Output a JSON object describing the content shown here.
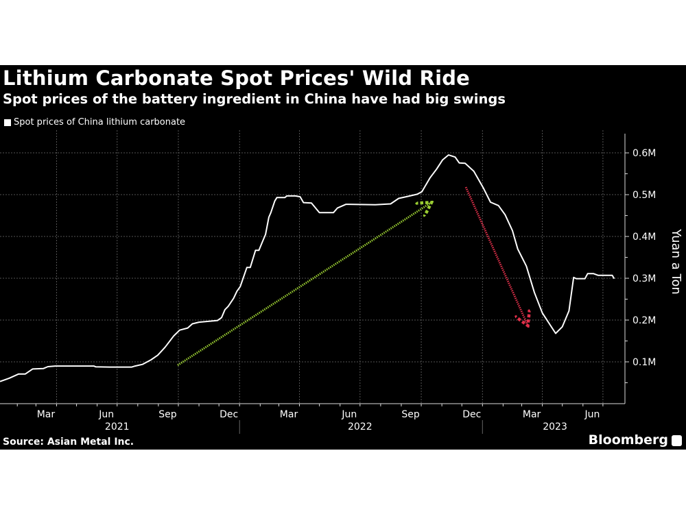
{
  "chart_data": {
    "type": "line",
    "title": "Lithium Carbonate Spot Prices' Wild Ride",
    "subtitle": "Spot prices of the battery ingredient in China have had big swings",
    "ylabel": "Yuan a Ton",
    "xlabel": "",
    "ylim": [
      0,
      646000
    ],
    "xlim": [
      "2021-01-06",
      "2023-07-31"
    ],
    "y_ticks": [
      {
        "value": 100000,
        "label": "0.1M"
      },
      {
        "value": 200000,
        "label": "0.2M"
      },
      {
        "value": 300000,
        "label": "0.3M"
      },
      {
        "value": 400000,
        "label": "0.4M"
      },
      {
        "value": 500000,
        "label": "0.5M"
      },
      {
        "value": 600000,
        "label": "0.6M"
      }
    ],
    "x_month_labels": [
      {
        "date": "2021-03-16",
        "label": "Mar"
      },
      {
        "date": "2021-06-15",
        "label": "Jun"
      },
      {
        "date": "2021-09-15",
        "label": "Sep"
      },
      {
        "date": "2021-12-16",
        "label": "Dec"
      },
      {
        "date": "2022-03-16",
        "label": "Mar"
      },
      {
        "date": "2022-06-15",
        "label": "Jun"
      },
      {
        "date": "2022-09-15",
        "label": "Sep"
      },
      {
        "date": "2022-12-16",
        "label": "Dec"
      },
      {
        "date": "2023-03-16",
        "label": "Mar"
      },
      {
        "date": "2023-06-15",
        "label": "Jun"
      }
    ],
    "x_year_labels": [
      {
        "date": "2021-07-01",
        "label": "2021"
      },
      {
        "date": "2022-07-01",
        "label": "2022"
      },
      {
        "date": "2023-04-20",
        "label": "2023"
      }
    ],
    "grid": true,
    "legend_position": "top-left",
    "series": [
      {
        "name": "Spot prices of China lithium carbonate",
        "color": "#ffffff",
        "points": [
          [
            "2021-01-06",
            53000
          ],
          [
            "2021-01-20",
            61000
          ],
          [
            "2021-02-03",
            71000
          ],
          [
            "2021-02-13",
            71000
          ],
          [
            "2021-02-24",
            83000
          ],
          [
            "2021-03-12",
            84000
          ],
          [
            "2021-03-19",
            88500
          ],
          [
            "2021-03-30",
            90000
          ],
          [
            "2021-05-27",
            90000
          ],
          [
            "2021-05-30",
            88000
          ],
          [
            "2021-06-20",
            87500
          ],
          [
            "2021-07-23",
            87500
          ],
          [
            "2021-07-28",
            90000
          ],
          [
            "2021-08-08",
            94000
          ],
          [
            "2021-08-21",
            105000
          ],
          [
            "2021-08-31",
            116000
          ],
          [
            "2021-09-11",
            135000
          ],
          [
            "2021-09-24",
            162000
          ],
          [
            "2021-10-03",
            176000
          ],
          [
            "2021-10-15",
            181000
          ],
          [
            "2021-10-22",
            191000
          ],
          [
            "2021-11-01",
            195000
          ],
          [
            "2021-11-22",
            198000
          ],
          [
            "2021-11-29",
            199000
          ],
          [
            "2021-12-05",
            206000
          ],
          [
            "2021-12-10",
            225000
          ],
          [
            "2021-12-15",
            233000
          ],
          [
            "2021-12-23",
            252000
          ],
          [
            "2021-12-28",
            269000
          ],
          [
            "2022-01-02",
            280000
          ],
          [
            "2022-01-12",
            326000
          ],
          [
            "2022-01-17",
            326000
          ],
          [
            "2022-01-25",
            367000
          ],
          [
            "2022-01-30",
            367000
          ],
          [
            "2022-02-04",
            386000
          ],
          [
            "2022-02-09",
            405000
          ],
          [
            "2022-02-14",
            446000
          ],
          [
            "2022-02-17",
            457000
          ],
          [
            "2022-02-23",
            485000
          ],
          [
            "2022-02-26",
            493000
          ],
          [
            "2022-03-10",
            493000
          ],
          [
            "2022-03-13",
            497000
          ],
          [
            "2022-03-26",
            497000
          ],
          [
            "2022-04-02",
            495000
          ],
          [
            "2022-04-07",
            481000
          ],
          [
            "2022-04-19",
            480000
          ],
          [
            "2022-05-01",
            457000
          ],
          [
            "2022-05-22",
            457000
          ],
          [
            "2022-05-28",
            468000
          ],
          [
            "2022-06-10",
            477000
          ],
          [
            "2022-07-24",
            476000
          ],
          [
            "2022-08-16",
            478000
          ],
          [
            "2022-08-28",
            491000
          ],
          [
            "2022-09-11",
            496000
          ],
          [
            "2022-09-25",
            501000
          ],
          [
            "2022-10-02",
            507000
          ],
          [
            "2022-10-14",
            540000
          ],
          [
            "2022-10-24",
            561000
          ],
          [
            "2022-11-02",
            583000
          ],
          [
            "2022-11-11",
            595000
          ],
          [
            "2022-11-21",
            590000
          ],
          [
            "2022-11-27",
            576000
          ],
          [
            "2022-12-06",
            575000
          ],
          [
            "2022-12-19",
            556000
          ],
          [
            "2023-01-02",
            517000
          ],
          [
            "2023-01-13",
            482000
          ],
          [
            "2023-01-25",
            474000
          ],
          [
            "2023-02-04",
            452000
          ],
          [
            "2023-02-15",
            414000
          ],
          [
            "2023-02-23",
            370000
          ],
          [
            "2023-03-08",
            329000
          ],
          [
            "2023-03-20",
            266000
          ],
          [
            "2023-04-01",
            217000
          ],
          [
            "2023-04-21",
            168000
          ],
          [
            "2023-05-01",
            184000
          ],
          [
            "2023-05-11",
            222000
          ],
          [
            "2023-05-18",
            302000
          ],
          [
            "2023-05-22",
            299000
          ],
          [
            "2023-06-04",
            299000
          ],
          [
            "2023-06-08",
            311000
          ],
          [
            "2023-06-17",
            311000
          ],
          [
            "2023-06-24",
            307000
          ],
          [
            "2023-07-15",
            307000
          ],
          [
            "2023-07-18",
            299000
          ]
        ]
      }
    ],
    "annotations": [
      {
        "type": "arrow",
        "style": "dotted",
        "color": "#9acd32",
        "from": [
          "2021-09-30",
          92000
        ],
        "to": [
          "2022-10-14",
          479000
        ]
      },
      {
        "type": "arrow",
        "style": "dotted",
        "color": "#e0304a",
        "from": [
          "2022-12-07",
          518000
        ],
        "to": [
          "2023-03-09",
          191000
        ]
      }
    ]
  },
  "legend": {
    "label": "Spot prices of China lithium carbonate"
  },
  "footer": {
    "source": "Source: Asian Metal Inc.",
    "brand": "Bloomberg"
  },
  "colors": {
    "background": "#000000",
    "line": "#ffffff",
    "grid": "#555555",
    "up_arrow": "#9acd32",
    "down_arrow": "#e0304a"
  }
}
